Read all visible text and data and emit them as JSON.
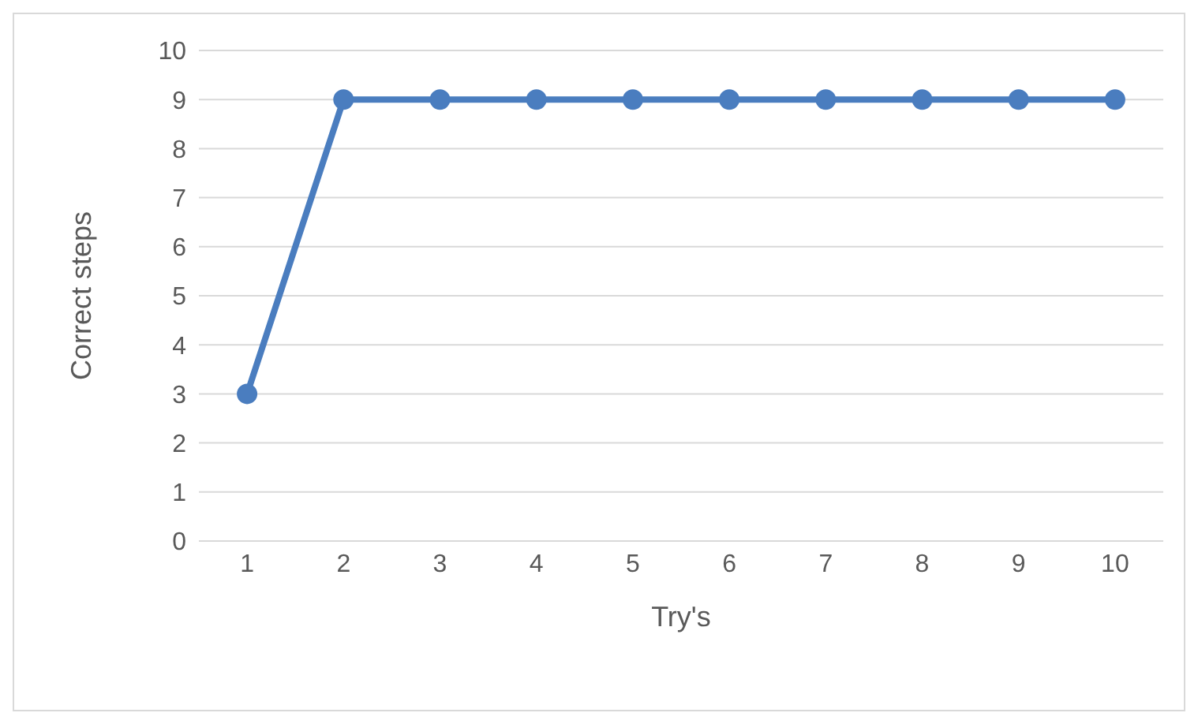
{
  "chart_data": {
    "type": "line",
    "xlabel": "Try's",
    "ylabel": "Correct steps",
    "categories": [
      "1",
      "2",
      "3",
      "4",
      "5",
      "6",
      "7",
      "8",
      "9",
      "10"
    ],
    "series": [
      {
        "color": "#4a7dbf",
        "values": [
          3,
          9,
          9,
          9,
          9,
          9,
          9,
          9,
          9,
          9
        ]
      }
    ],
    "ylim": [
      0,
      10
    ],
    "yticks": [
      0,
      1,
      2,
      3,
      4,
      5,
      6,
      7,
      8,
      9,
      10
    ],
    "grid": "y",
    "marker": "circle",
    "line_style": "solid",
    "legend": false
  }
}
